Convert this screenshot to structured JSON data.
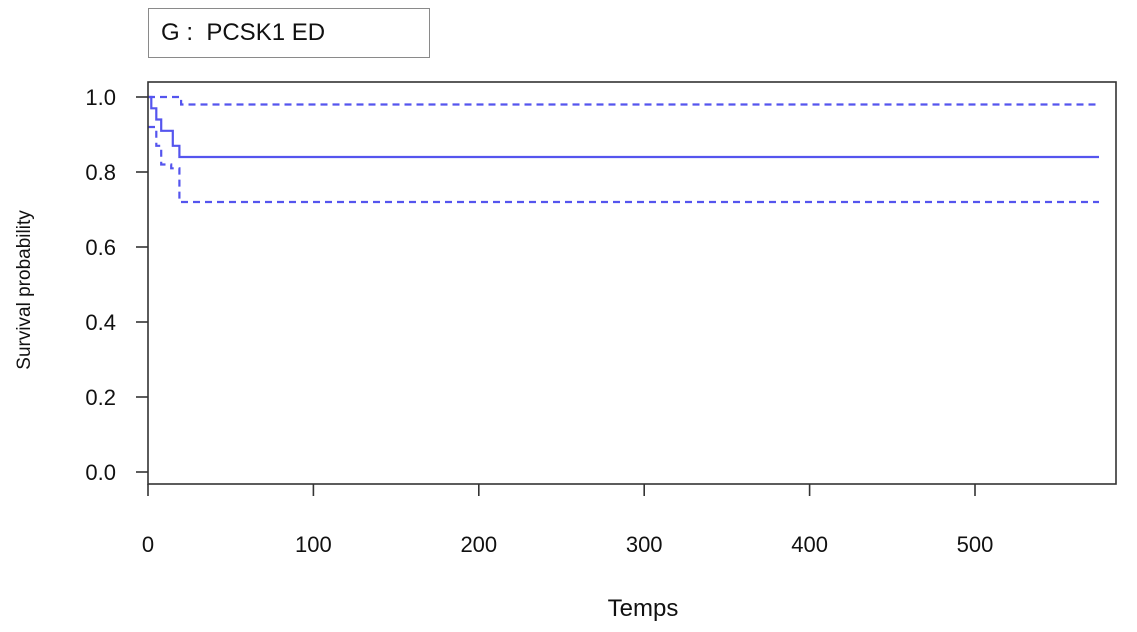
{
  "chart_data": {
    "type": "line",
    "title": "G :  PCSK1 ED",
    "xlabel": "Temps",
    "ylabel": "Survival probability",
    "xlim": [
      0,
      575
    ],
    "ylim": [
      0,
      1
    ],
    "x_ticks": [
      "0",
      "100",
      "200",
      "300",
      "400",
      "500"
    ],
    "y_ticks": [
      "0.0",
      "0.2",
      "0.4",
      "0.6",
      "0.8",
      "1.0"
    ],
    "grid": false,
    "series": [
      {
        "style": "solid",
        "color": "#5555ee",
        "points": [
          [
            0,
            1.0
          ],
          [
            2,
            0.97
          ],
          [
            5,
            0.94
          ],
          [
            8,
            0.91
          ],
          [
            15,
            0.87
          ],
          [
            19,
            0.84
          ],
          [
            575,
            0.84
          ]
        ]
      },
      {
        "style": "dashed",
        "color": "#5555ee",
        "points": [
          [
            0,
            1.0
          ],
          [
            18,
            1.0
          ],
          [
            20,
            0.98
          ],
          [
            575,
            0.98
          ]
        ]
      },
      {
        "style": "dashed",
        "color": "#5555ee",
        "points": [
          [
            0,
            0.92
          ],
          [
            5,
            0.87
          ],
          [
            8,
            0.82
          ],
          [
            14,
            0.81
          ],
          [
            19,
            0.72
          ],
          [
            575,
            0.72
          ]
        ]
      }
    ]
  }
}
